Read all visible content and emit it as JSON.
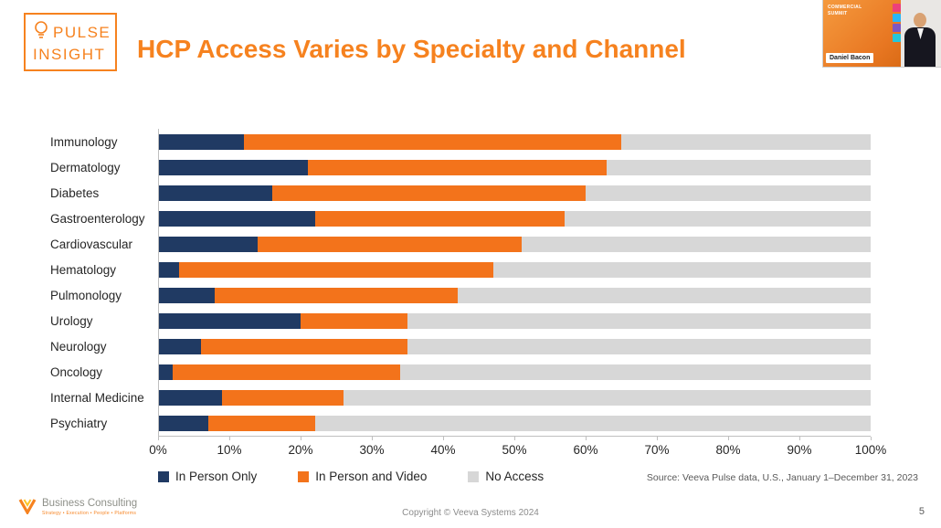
{
  "logo": {
    "line1": "PULSE",
    "line2": "INSIGHT"
  },
  "title": "HCP Access Varies by Specialty and Channel",
  "webcam": {
    "name": "Daniel Bacon",
    "slide_text": "COMMERCIAL SUMMIT"
  },
  "chart_data": {
    "type": "bar",
    "orientation": "horizontal",
    "stacked": true,
    "title": "HCP Access Varies by Specialty and Channel",
    "xlabel": "",
    "ylabel": "",
    "xlim": [
      0,
      100
    ],
    "grid": false,
    "legend_position": "bottom",
    "categories": [
      "Immunology",
      "Dermatology",
      "Diabetes",
      "Gastroenterology",
      "Cardiovascular",
      "Hematology",
      "Pulmonology",
      "Urology",
      "Neurology",
      "Oncology",
      "Internal Medicine",
      "Psychiatry"
    ],
    "series": [
      {
        "name": "In Person Only",
        "color": "#203A63",
        "values": [
          12,
          21,
          16,
          22,
          14,
          3,
          8,
          20,
          6,
          2,
          9,
          7
        ]
      },
      {
        "name": "In Person and Video",
        "color": "#F3731B",
        "values": [
          53,
          42,
          44,
          35,
          37,
          44,
          34,
          15,
          29,
          32,
          17,
          15
        ]
      },
      {
        "name": "No Access",
        "color": "#D7D7D7",
        "values": [
          35,
          37,
          40,
          43,
          49,
          53,
          58,
          65,
          65,
          66,
          74,
          78
        ]
      }
    ],
    "xticks": [
      "0%",
      "10%",
      "20%",
      "30%",
      "40%",
      "50%",
      "60%",
      "70%",
      "80%",
      "90%",
      "100%"
    ]
  },
  "source": "Source: Veeva Pulse data, U.S., January 1–December 31, 2023",
  "footer": {
    "brand": "Business Consulting",
    "tagline": "Strategy • Execution • People • Platforms",
    "copyright": "Copyright © Veeva Systems 2024",
    "page_number": "5"
  }
}
